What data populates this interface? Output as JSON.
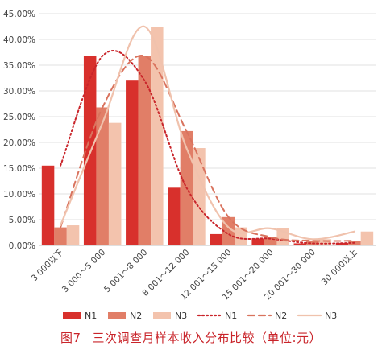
{
  "caption": {
    "figure_number": "图7",
    "title": "三次调查月样本收入分布比较（单位:元）"
  },
  "chart_data": {
    "type": "bar",
    "categories": [
      "3 000以下",
      "3 000～5 000",
      "5 001～8 000",
      "8 001～12 000",
      "12 001～15 000",
      "15 001～20 000",
      "20 001～30 000",
      "30 000以上"
    ],
    "y_ticks": [
      "0.00%",
      "5.00%",
      "10.00%",
      "15.00%",
      "20.00%",
      "25.00%",
      "30.00%",
      "35.00%",
      "40.00%",
      "45.00%"
    ],
    "ylim": [
      0,
      45
    ],
    "grid": true,
    "legend_position": "bottom",
    "series": [
      {
        "name": "N1",
        "color": "#d8302c",
        "values": [
          15.5,
          36.8,
          32.0,
          11.2,
          2.2,
          1.3,
          0.4,
          0.5
        ]
      },
      {
        "name": "N2",
        "color": "#e17e67",
        "values": [
          3.5,
          26.8,
          36.8,
          22.2,
          5.5,
          1.6,
          0.9,
          0.9
        ]
      },
      {
        "name": "N3",
        "color": "#f3c3ad",
        "values": [
          3.9,
          23.8,
          42.5,
          18.9,
          3.5,
          3.3,
          1.2,
          2.7
        ]
      }
    ],
    "trend_lines": [
      {
        "name": "N1",
        "style": "dotted",
        "color": "#c9242a"
      },
      {
        "name": "N2",
        "style": "dashed",
        "color": "#d9735e"
      },
      {
        "name": "N3",
        "style": "solid",
        "color": "#f0c2ad"
      }
    ]
  }
}
